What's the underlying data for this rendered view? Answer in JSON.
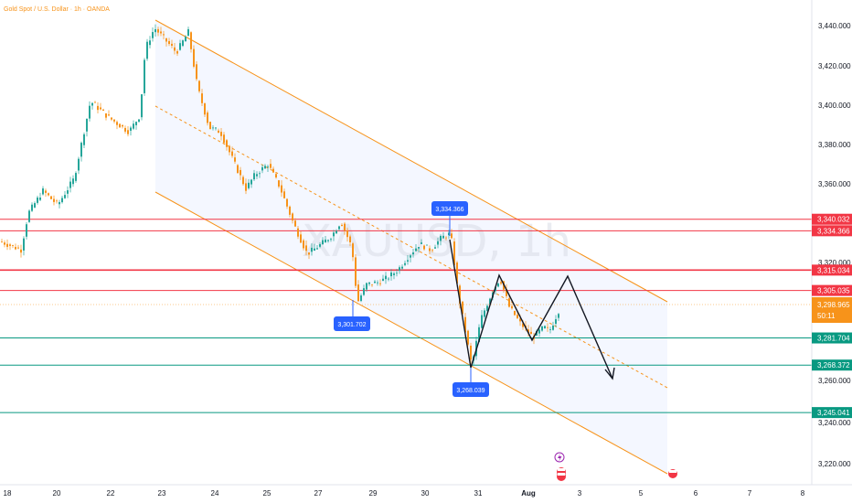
{
  "header": {
    "title": "Gold Spot / U.S. Dollar · 1h · OANDA"
  },
  "watermark": "XAUUSD, 1h",
  "countdown": "50:11",
  "colors": {
    "up": "#26a69a",
    "down": "#f7931a",
    "resistance": "#f23645",
    "support": "#089981",
    "channel": "#f7931a",
    "label_bg": "#2962ff",
    "current": "#f7931a"
  },
  "chart_data": {
    "type": "candlestick",
    "instrument": "Gold Spot / U.S. Dollar",
    "timeframe": "1h",
    "x_ticks": [
      "18",
      "20",
      "22",
      "23",
      "24",
      "25",
      "27",
      "29",
      "30",
      "31",
      "Aug",
      "3",
      "5",
      "6",
      "7",
      "8"
    ],
    "y_ticks": [
      "3,440.000",
      "3,420.000",
      "3,400.000",
      "3,380.000",
      "3,360.000",
      "3,320.000",
      "3,260.000",
      "3,240.000",
      "3,220.000"
    ],
    "ylim": [
      3212,
      3447
    ],
    "current_price": "3,298.965",
    "price_levels": [
      {
        "value": 3340.032,
        "label": "3,340.032",
        "kind": "resistance"
      },
      {
        "value": 3334.366,
        "label": "3,334.366",
        "kind": "resistance"
      },
      {
        "value": 3315.034,
        "label": "3,315.034",
        "kind": "resistance"
      },
      {
        "value": 3305.035,
        "label": "3,305.035",
        "kind": "resistance"
      },
      {
        "value": 3281.704,
        "label": "3,281.704",
        "kind": "support"
      },
      {
        "value": 3268.372,
        "label": "3,268.372",
        "kind": "support"
      },
      {
        "value": 3245.041,
        "label": "3,245.041",
        "kind": "support"
      }
    ],
    "annotations": [
      {
        "label": "3,334.366",
        "value": 3334.366,
        "position": "top"
      },
      {
        "label": "3,301.702",
        "value": 3301.702,
        "position": "bottom"
      },
      {
        "label": "3,268.039",
        "value": 3268.039,
        "position": "bottom"
      }
    ]
  }
}
